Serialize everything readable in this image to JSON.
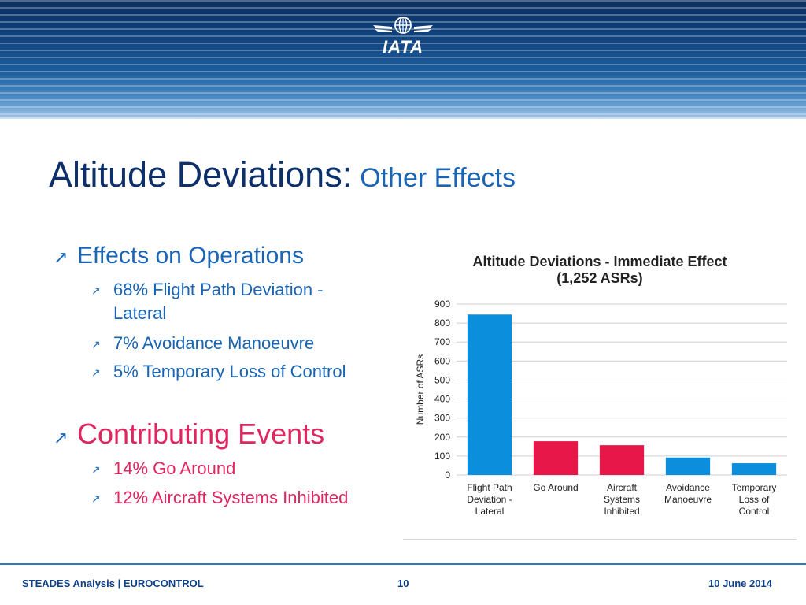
{
  "header": {
    "logo_text": "IATA"
  },
  "title": {
    "main": "Altitude Deviations:",
    "sub": "Other Effects"
  },
  "bullets": {
    "ops": {
      "heading": "Effects on Operations",
      "items": [
        "68% Flight Path Deviation -",
        "Lateral",
        "7% Avoidance Manoeuvre",
        "5% Temporary Loss of Control"
      ]
    },
    "contrib": {
      "heading": "Contributing Events",
      "items": [
        "14% Go Around",
        "12% Aircraft Systems Inhibited"
      ]
    },
    "colors": {
      "blue": "#1a64b4",
      "pink": "#e0265f"
    }
  },
  "chart_data": {
    "type": "bar",
    "title": "Altitude Deviations - Immediate Effect",
    "subtitle": "(1,252 ASRs)",
    "ylabel": "Number of ASRs",
    "xlabel": "",
    "ylim": [
      0,
      900
    ],
    "yticks": [
      0,
      100,
      200,
      300,
      400,
      500,
      600,
      700,
      800,
      900
    ],
    "grid": true,
    "categories": [
      [
        "Flight Path",
        "Deviation -",
        "Lateral"
      ],
      [
        "Go Around"
      ],
      [
        "Aircraft",
        "Systems",
        "Inhibited"
      ],
      [
        "Avoidance",
        "Manoeuvre"
      ],
      [
        "Temporary",
        "Loss of",
        "Control"
      ]
    ],
    "values": [
      845,
      178,
      157,
      92,
      62
    ],
    "bar_colors": [
      "#0b8fdc",
      "#e8174a",
      "#e8174a",
      "#0b8fdc",
      "#0b8fdc"
    ]
  },
  "footer": {
    "left": "STEADES Analysis | EUROCONTROL",
    "page": "10",
    "date": "10 June 2014"
  }
}
